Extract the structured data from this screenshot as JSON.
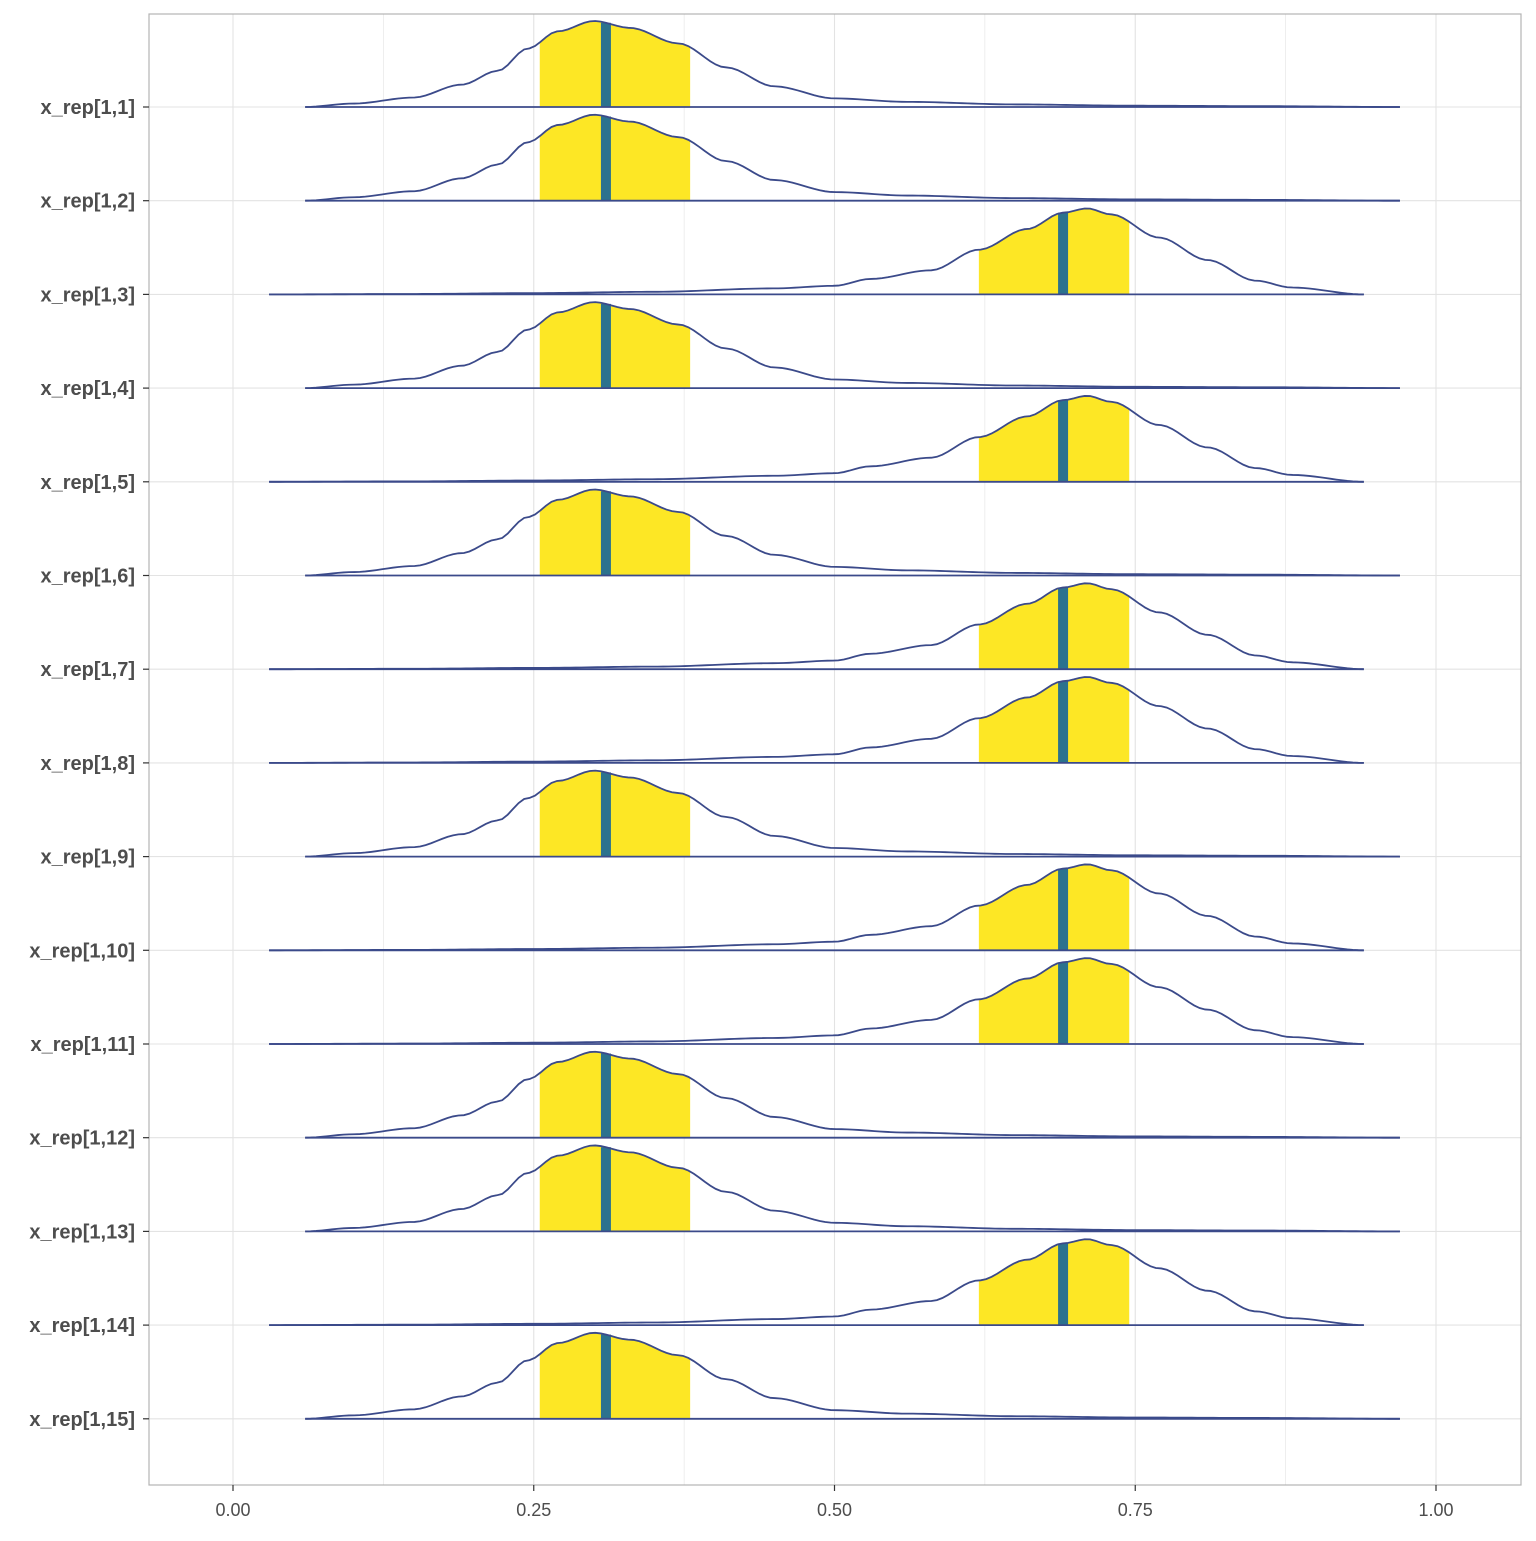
{
  "chart_data": {
    "type": "area",
    "title": "",
    "xlabel": "",
    "ylabel": "",
    "xlim": [
      -0.07,
      1.07
    ],
    "x_ticks": [
      "0.00",
      "0.25",
      "0.50",
      "0.75",
      "1.00"
    ],
    "x_tick_values": [
      0,
      0.25,
      0.5,
      0.75,
      1.0
    ],
    "grid": true,
    "legend": "none",
    "colors": {
      "curve": "#3b4a8a",
      "interval_fill": "#fde725",
      "median_line": "#2c728e",
      "grid": "#e3e3e3",
      "panel_border": "#b3b3b3",
      "text": "#4d4d4d"
    },
    "distributions": {
      "low": {
        "support": [
          0.06,
          0.97
        ],
        "median": 0.31,
        "interval": [
          0.255,
          0.38
        ],
        "density": [
          [
            0.06,
            0.0
          ],
          [
            0.1,
            0.04
          ],
          [
            0.15,
            0.11
          ],
          [
            0.19,
            0.26
          ],
          [
            0.22,
            0.42
          ],
          [
            0.245,
            0.68
          ],
          [
            0.27,
            0.88
          ],
          [
            0.3,
            1.0
          ],
          [
            0.33,
            0.92
          ],
          [
            0.37,
            0.74
          ],
          [
            0.41,
            0.46
          ],
          [
            0.45,
            0.24
          ],
          [
            0.5,
            0.1
          ],
          [
            0.56,
            0.06
          ],
          [
            0.65,
            0.03
          ],
          [
            0.75,
            0.015
          ],
          [
            0.85,
            0.01
          ],
          [
            0.97,
            0.0
          ]
        ]
      },
      "high": {
        "support": [
          0.03,
          0.94
        ],
        "median": 0.69,
        "interval": [
          0.62,
          0.745
        ],
        "density": [
          [
            0.03,
            0.0
          ],
          [
            0.15,
            0.005
          ],
          [
            0.25,
            0.015
          ],
          [
            0.35,
            0.03
          ],
          [
            0.45,
            0.07
          ],
          [
            0.5,
            0.1
          ],
          [
            0.53,
            0.18
          ],
          [
            0.58,
            0.28
          ],
          [
            0.62,
            0.52
          ],
          [
            0.66,
            0.76
          ],
          [
            0.69,
            0.95
          ],
          [
            0.71,
            1.0
          ],
          [
            0.73,
            0.93
          ],
          [
            0.77,
            0.66
          ],
          [
            0.81,
            0.4
          ],
          [
            0.85,
            0.16
          ],
          [
            0.88,
            0.08
          ],
          [
            0.94,
            0.0
          ]
        ]
      }
    },
    "rows": [
      {
        "label": "x_rep[1,1]",
        "dist": "low"
      },
      {
        "label": "x_rep[1,2]",
        "dist": "low"
      },
      {
        "label": "x_rep[1,3]",
        "dist": "high"
      },
      {
        "label": "x_rep[1,4]",
        "dist": "low"
      },
      {
        "label": "x_rep[1,5]",
        "dist": "high"
      },
      {
        "label": "x_rep[1,6]",
        "dist": "low"
      },
      {
        "label": "x_rep[1,7]",
        "dist": "high"
      },
      {
        "label": "x_rep[1,8]",
        "dist": "high"
      },
      {
        "label": "x_rep[1,9]",
        "dist": "low"
      },
      {
        "label": "x_rep[1,10]",
        "dist": "high"
      },
      {
        "label": "x_rep[1,11]",
        "dist": "high"
      },
      {
        "label": "x_rep[1,12]",
        "dist": "low"
      },
      {
        "label": "x_rep[1,13]",
        "dist": "low"
      },
      {
        "label": "x_rep[1,14]",
        "dist": "high"
      },
      {
        "label": "x_rep[1,15]",
        "dist": "low"
      }
    ]
  }
}
